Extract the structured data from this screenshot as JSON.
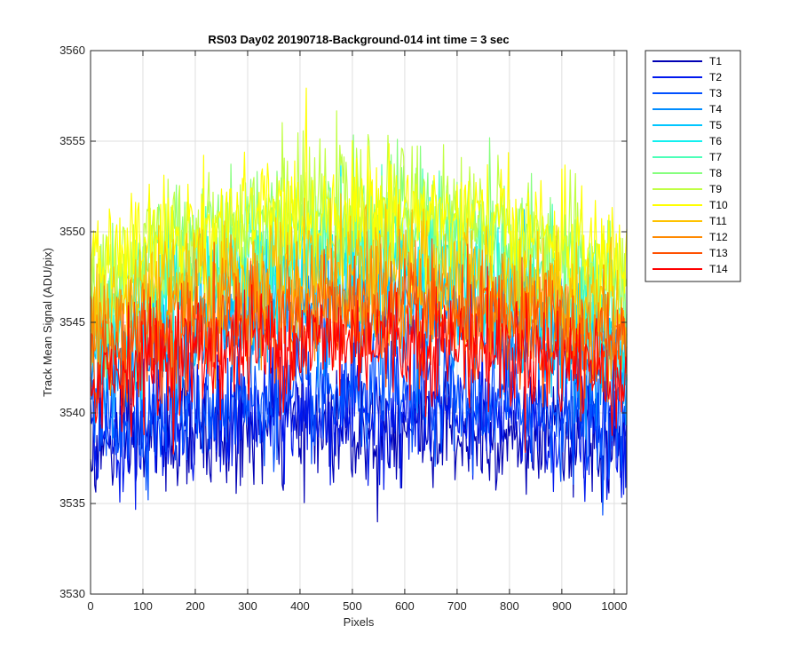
{
  "chart_data": {
    "type": "line",
    "title": "RS03 Day02 20190718-Background-014 int time = 3 sec",
    "xlabel": "Pixels",
    "ylabel": "Track Mean Signal (ADU/pix)",
    "xlim": [
      0,
      1024
    ],
    "ylim": [
      3530,
      3560
    ],
    "xticks": [
      0,
      100,
      200,
      300,
      400,
      500,
      600,
      700,
      800,
      900,
      1000
    ],
    "yticks": [
      3530,
      3535,
      3540,
      3545,
      3550,
      3555,
      3560
    ],
    "grid": true,
    "legend_position": "outside-top-right",
    "noise_note_amplitude": 1.6,
    "series": [
      {
        "name": "T1",
        "color": "#0000B4",
        "edge_level": 3538.0,
        "center_level": 3539.2
      },
      {
        "name": "T2",
        "color": "#0018EE",
        "edge_level": 3538.6,
        "center_level": 3540.0
      },
      {
        "name": "T3",
        "color": "#0050FF",
        "edge_level": 3539.4,
        "center_level": 3541.0
      },
      {
        "name": "T4",
        "color": "#008CFF",
        "edge_level": 3541.8,
        "center_level": 3545.6
      },
      {
        "name": "T5",
        "color": "#00C6FF",
        "edge_level": 3542.8,
        "center_level": 3547.2
      },
      {
        "name": "T6",
        "color": "#12F0F0",
        "edge_level": 3544.0,
        "center_level": 3548.4
      },
      {
        "name": "T7",
        "color": "#4CFFB8",
        "edge_level": 3545.2,
        "center_level": 3549.8
      },
      {
        "name": "T8",
        "color": "#86FF7E",
        "edge_level": 3546.4,
        "center_level": 3551.0
      },
      {
        "name": "T9",
        "color": "#C0FF44",
        "edge_level": 3547.4,
        "center_level": 3551.6
      },
      {
        "name": "T10",
        "color": "#FFFF00",
        "edge_level": 3548.0,
        "center_level": 3551.2
      },
      {
        "name": "T11",
        "color": "#FFC200",
        "edge_level": 3545.6,
        "center_level": 3548.0
      },
      {
        "name": "T12",
        "color": "#FF8A00",
        "edge_level": 3544.0,
        "center_level": 3546.4
      },
      {
        "name": "T13",
        "color": "#FF5000",
        "edge_level": 3543.0,
        "center_level": 3545.2
      },
      {
        "name": "T14",
        "color": "#FF0000",
        "edge_level": 3542.0,
        "center_level": 3544.0
      }
    ]
  }
}
